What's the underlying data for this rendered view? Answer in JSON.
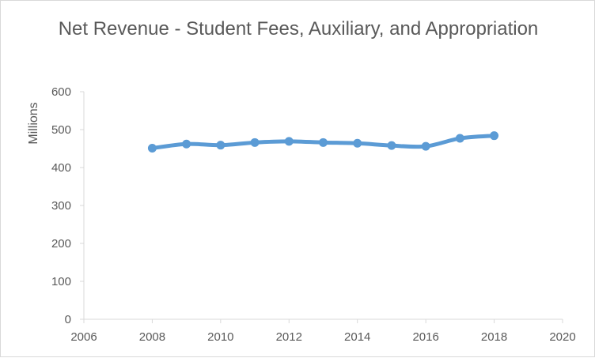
{
  "chart_data": {
    "type": "line",
    "title": "Net Revenue - Student Fees, Auxiliary, and Appropriation",
    "xlabel": "",
    "ylabel": "Millions",
    "xlim": [
      2006,
      2020
    ],
    "ylim": [
      0,
      600
    ],
    "x_ticks": [
      2006,
      2008,
      2010,
      2012,
      2014,
      2016,
      2018,
      2020
    ],
    "y_ticks": [
      0,
      100,
      200,
      300,
      400,
      500,
      600
    ],
    "grid": false,
    "legend": "none",
    "series": [
      {
        "color": "#5b9bd5",
        "x": [
          2008,
          2009,
          2010,
          2011,
          2012,
          2013,
          2014,
          2015,
          2016,
          2017,
          2018
        ],
        "y": [
          451,
          462,
          459,
          466,
          469,
          466,
          464,
          458,
          456,
          477,
          484
        ]
      }
    ]
  }
}
